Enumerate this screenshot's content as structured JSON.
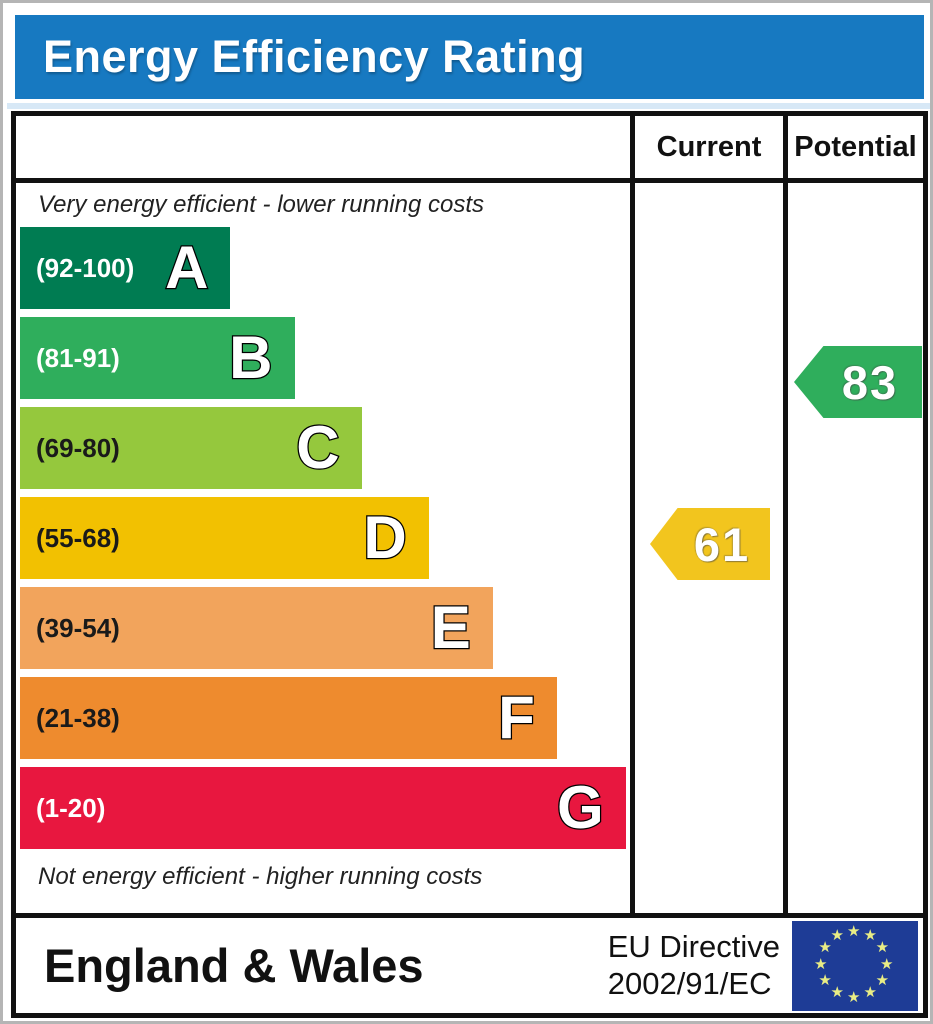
{
  "title": "Energy Efficiency Rating",
  "table": {
    "columns": {
      "current": "Current",
      "potential": "Potential"
    },
    "top_note": "Very energy efficient - lower running costs",
    "bottom_note": "Not energy efficient - higher running costs"
  },
  "chart_data": {
    "type": "bar",
    "title": "Energy Efficiency Rating",
    "bands": [
      {
        "letter": "A",
        "range": "(92-100)",
        "min": 92,
        "max": 100,
        "color": "#007c52",
        "text_color": "#ffffff",
        "width_pct": 34.5
      },
      {
        "letter": "B",
        "range": "(81-91)",
        "min": 81,
        "max": 91,
        "color": "#2fae5c",
        "text_color": "#ffffff",
        "width_pct": 45
      },
      {
        "letter": "C",
        "range": "(69-80)",
        "min": 69,
        "max": 80,
        "color": "#95c83d",
        "text_color": "#1a1a1a",
        "width_pct": 56
      },
      {
        "letter": "D",
        "range": "(55-68)",
        "min": 55,
        "max": 68,
        "color": "#f2c101",
        "text_color": "#1a1a1a",
        "width_pct": 67
      },
      {
        "letter": "E",
        "range": "(39-54)",
        "min": 39,
        "max": 54,
        "color": "#f2a45c",
        "text_color": "#1a1a1a",
        "width_pct": 77.5
      },
      {
        "letter": "F",
        "range": "(21-38)",
        "min": 21,
        "max": 38,
        "color": "#ee8b2e",
        "text_color": "#1a1a1a",
        "width_pct": 88
      },
      {
        "letter": "G",
        "range": "(1-20)",
        "min": 1,
        "max": 20,
        "color": "#e8173f",
        "text_color": "#ffffff",
        "width_pct": 99.3
      }
    ],
    "current": {
      "value": 61,
      "band": "D",
      "color": "#f2c51e"
    },
    "potential": {
      "value": 83,
      "band": "B",
      "color": "#2fae5c"
    }
  },
  "footer": {
    "region": "England & Wales",
    "directive_line1": "EU Directive",
    "directive_line2": "2002/91/EC",
    "flag_icon": "eu-flag",
    "flag_star_count": 12,
    "flag_color": "#1e3c96",
    "star_color": "#e9ed85"
  },
  "theme": {
    "header_blue": "#1779c1",
    "border_black": "#111111"
  }
}
